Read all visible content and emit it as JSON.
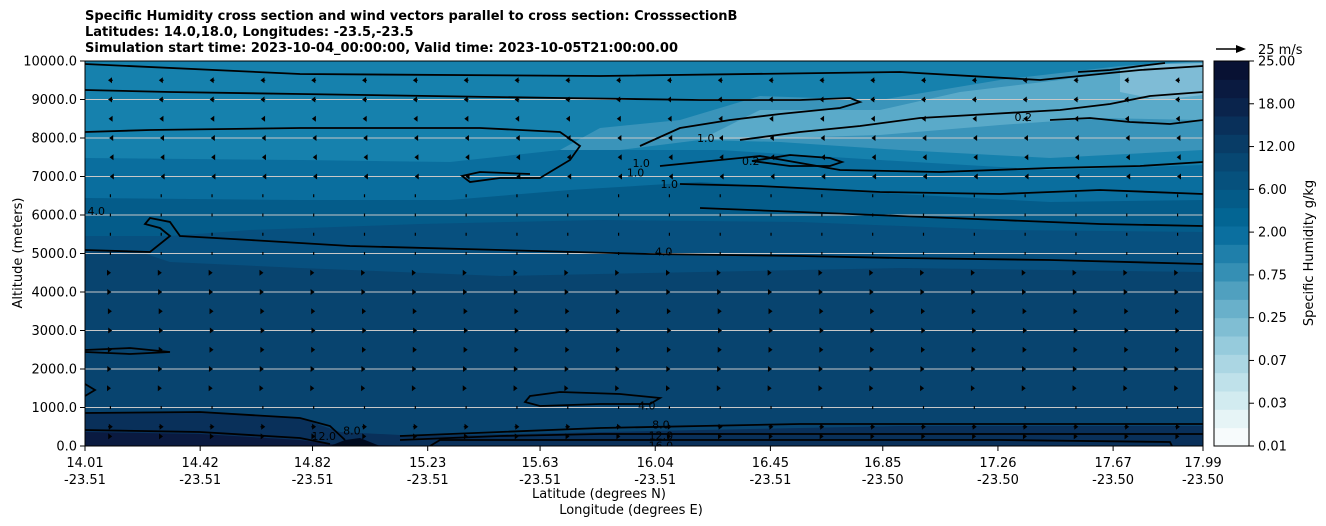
{
  "chart_data": {
    "type": "heatmap",
    "title_lines": [
      "Specific Humidity cross section and wind vectors parallel to cross section: CrosssectionB",
      "Latitudes: 14.0,18.0, Longitudes: -23.5,-23.5",
      "Simulation start time: 2023-10-04_00:00:00, Valid time: 2023-10-05T21:00:00.00"
    ],
    "xlabel_lat": "Latitude (degrees N)",
    "xlabel_lon": "Longitude (degrees E)",
    "ylabel": "Altitude (meters)",
    "ylim": [
      0,
      10000
    ],
    "y_ticks": [
      "0.0",
      "1000.0",
      "2000.0",
      "3000.0",
      "4000.0",
      "5000.0",
      "6000.0",
      "7000.0",
      "8000.0",
      "9000.0",
      "10000.0"
    ],
    "x_ticks": [
      {
        "lat": "14.01",
        "lon": "-23.51"
      },
      {
        "lat": "14.42",
        "lon": "-23.51"
      },
      {
        "lat": "14.82",
        "lon": "-23.51"
      },
      {
        "lat": "15.23",
        "lon": "-23.51"
      },
      {
        "lat": "15.63",
        "lon": "-23.51"
      },
      {
        "lat": "16.04",
        "lon": "-23.51"
      },
      {
        "lat": "16.45",
        "lon": "-23.51"
      },
      {
        "lat": "16.85",
        "lon": "-23.50"
      },
      {
        "lat": "17.26",
        "lon": "-23.50"
      },
      {
        "lat": "17.67",
        "lon": "-23.50"
      },
      {
        "lat": "17.99",
        "lon": "-23.50"
      }
    ],
    "colorbar": {
      "label": "Specific Humidity g/kg",
      "tick_labels": [
        "0.01",
        "0.03",
        "0.07",
        "0.25",
        "0.75",
        "2.00",
        "6.00",
        "12.00",
        "18.00",
        "25.00"
      ],
      "colors": [
        "#f7fbfc",
        "#e6f4f6",
        "#d2ebf0",
        "#bfe1ea",
        "#abd6e3",
        "#96cbdc",
        "#80bed3",
        "#69b0ca",
        "#50a0bf",
        "#358fb4",
        "#1f7faa",
        "#0b6f9f",
        "#036593",
        "#045b88",
        "#06517d",
        "#074772",
        "#083c66",
        "#09305a",
        "#0a244c",
        "#0a1a40",
        "#081133"
      ]
    },
    "contour_labels": [
      {
        "text": "0.2",
        "lat": 17.35,
        "alt": 8550
      },
      {
        "text": "0.2",
        "lat": 16.38,
        "alt": 7400
      },
      {
        "text": "1.0",
        "lat": 16.22,
        "alt": 8000
      },
      {
        "text": "1.0",
        "lat": 15.99,
        "alt": 7350
      },
      {
        "text": "1.0",
        "lat": 15.97,
        "alt": 7100
      },
      {
        "text": "1.0",
        "lat": 16.09,
        "alt": 6800
      },
      {
        "text": "4.0",
        "lat": 14.05,
        "alt": 6100
      },
      {
        "text": "4.0",
        "lat": 16.07,
        "alt": 5050
      },
      {
        "text": "4.0",
        "lat": 16.01,
        "alt": 1050
      },
      {
        "text": "8.0",
        "lat": 16.06,
        "alt": 560
      },
      {
        "text": "8.0",
        "lat": 14.96,
        "alt": 400
      },
      {
        "text": "12.0",
        "lat": 14.86,
        "alt": 260
      },
      {
        "text": "12.0",
        "lat": 16.06,
        "alt": 270
      },
      {
        "text": "16.0",
        "lat": 16.06,
        "alt": 10
      }
    ],
    "wind_reference": {
      "label": "25 m/s",
      "speed_ms": 25
    },
    "wind_vectors": {
      "description_rows": [
        {
          "alt": 9500,
          "u_ms": -4
        },
        {
          "alt": 9000,
          "u_ms": -4
        },
        {
          "alt": 8500,
          "u_ms": -3
        },
        {
          "alt": 8000,
          "u_ms": -2
        },
        {
          "alt": 7500,
          "u_ms": -1.5
        },
        {
          "alt": 7000,
          "u_ms": -1
        },
        {
          "alt": 6500,
          "u_ms": -0.5
        },
        {
          "alt": 6000,
          "u_ms": -0.3
        },
        {
          "alt": 5500,
          "u_ms": 0.3
        },
        {
          "alt": 5000,
          "u_ms": 0.5
        },
        {
          "alt": 4500,
          "u_ms": 1
        },
        {
          "alt": 4000,
          "u_ms": 1.5
        },
        {
          "alt": 3500,
          "u_ms": 2.5
        },
        {
          "alt": 3000,
          "u_ms": 3
        },
        {
          "alt": 2500,
          "u_ms": 2.5
        },
        {
          "alt": 2000,
          "u_ms": 1.5
        },
        {
          "alt": 1500,
          "u_ms": 1
        },
        {
          "alt": 1000,
          "u_ms": 0.6
        },
        {
          "alt": 500,
          "u_ms": 4
        },
        {
          "alt": 250,
          "u_ms": 3
        }
      ]
    }
  }
}
